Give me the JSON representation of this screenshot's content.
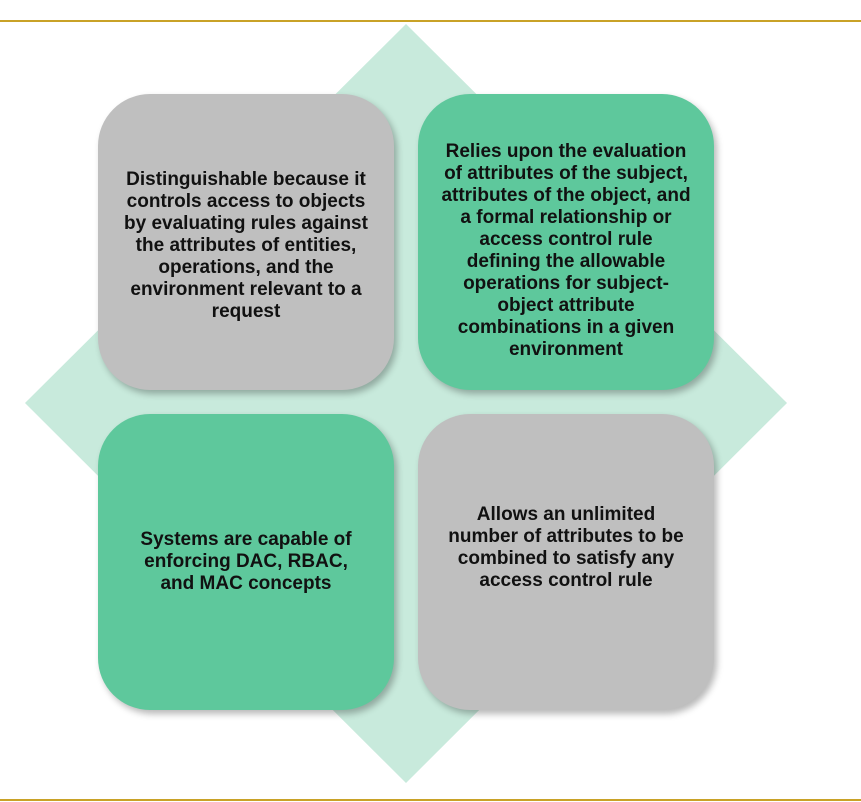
{
  "colors": {
    "rule": "#c9a227",
    "diamond": "#c8eadc",
    "card_gray": "#bfbfbf",
    "card_green": "#5ec89c",
    "text": "#111111"
  },
  "quadrants": {
    "top_left": "Distinguishable because it controls access to objects by evaluating rules against the attributes of entities, operations, and the environment relevant to a request",
    "top_right": "Relies upon the evaluation of attributes of the subject, attributes of the object, and a formal relationship or access control rule defining the allowable operations for subject-object attribute combinations in a given environment",
    "bottom_left": "Systems are capable of enforcing DAC, RBAC, and MAC concepts",
    "bottom_right": "Allows an unlimited number of attributes to be combined to satisfy any access control rule"
  }
}
